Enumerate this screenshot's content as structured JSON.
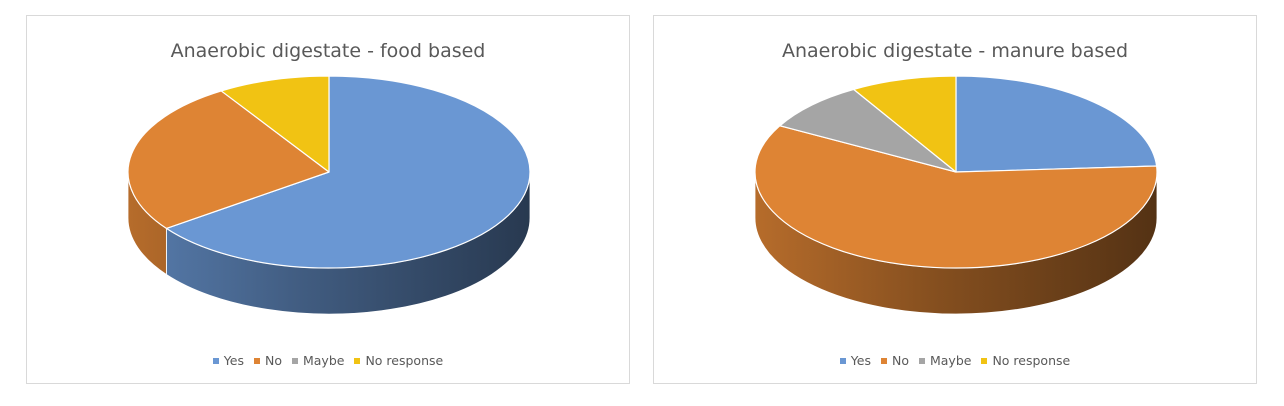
{
  "colors": {
    "Yes": "#6a97d3",
    "No": "#de8434",
    "Maybe": "#a5a5a5",
    "No response": "#f1c313"
  },
  "chart_data": [
    {
      "type": "pie",
      "style": "3d",
      "title": "Anaerobic digestate - food based",
      "categories": [
        "Yes",
        "No",
        "Maybe",
        "No response"
      ],
      "values": [
        65,
        26,
        0,
        9
      ],
      "legend_position": "bottom"
    },
    {
      "type": "pie",
      "style": "3d",
      "title": "Anaerobic digestate - manure based",
      "categories": [
        "Yes",
        "No",
        "Maybe",
        "No response"
      ],
      "values": [
        24,
        59,
        8.5,
        8.5
      ],
      "legend_position": "bottom"
    }
  ]
}
